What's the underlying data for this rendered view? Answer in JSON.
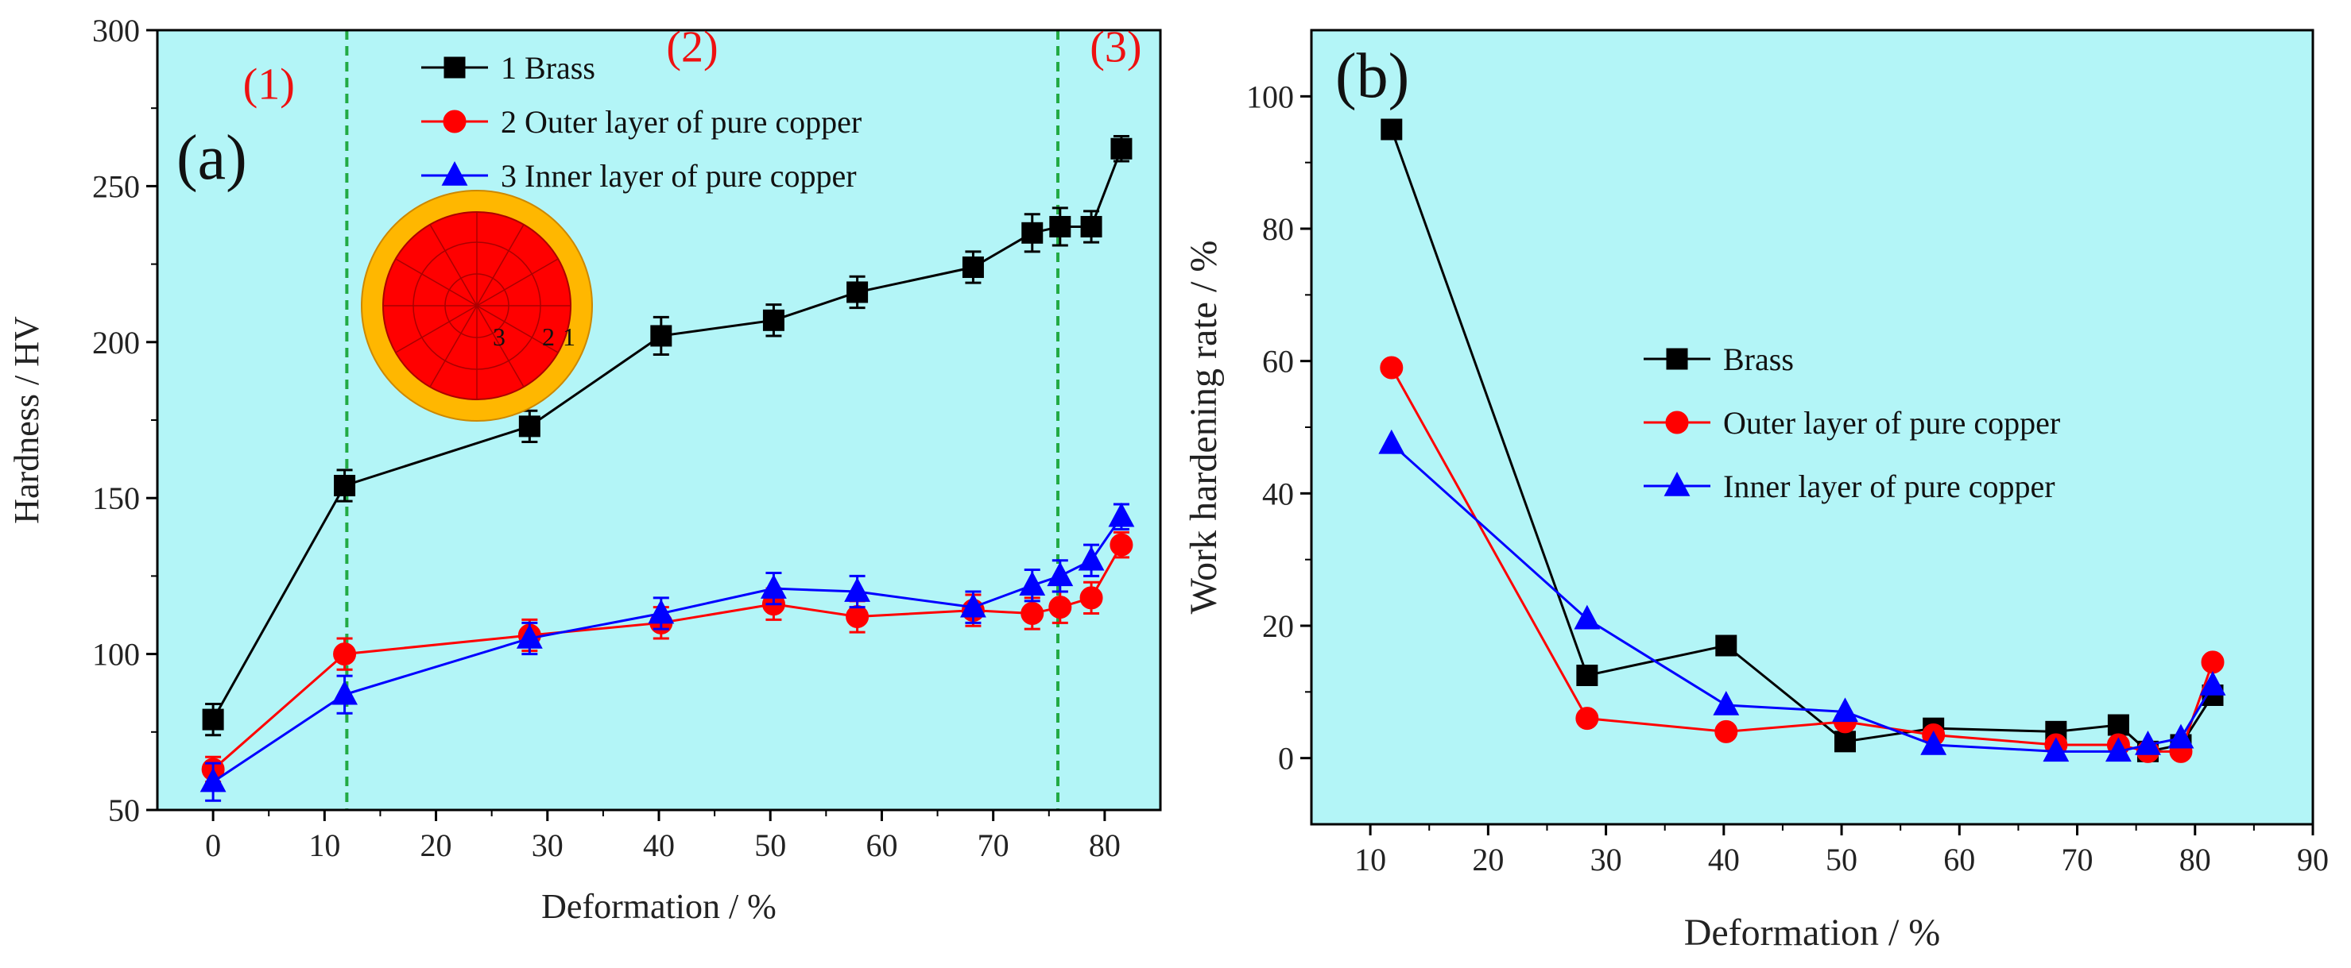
{
  "chart_data": [
    {
      "type": "line",
      "panel_label": "(a)",
      "xlabel": "Deformation / %",
      "ylabel": "Hardness / HV",
      "xlim": [
        -5,
        85
      ],
      "ylim": [
        50,
        300
      ],
      "xticks": [
        0,
        10,
        20,
        30,
        40,
        50,
        60,
        70,
        80
      ],
      "yticks": [
        50,
        100,
        150,
        200,
        250,
        300
      ],
      "background": "#b3f5f7",
      "legend_position": "top-center",
      "series": [
        {
          "name": "1 Brass",
          "color": "#000000",
          "marker": "square",
          "x": [
            0,
            11.8,
            28.4,
            40.2,
            50.3,
            57.8,
            68.2,
            73.5,
            76.0,
            78.8,
            81.5
          ],
          "y": [
            79,
            154,
            173,
            202,
            207,
            216,
            224,
            235,
            237,
            237,
            262
          ],
          "err": [
            5,
            5,
            5,
            6,
            5,
            5,
            5,
            6,
            6,
            5,
            4
          ]
        },
        {
          "name": "2 Outer layer of pure copper",
          "color": "#ff0000",
          "marker": "circle",
          "x": [
            0,
            11.8,
            28.4,
            40.2,
            50.3,
            57.8,
            68.2,
            73.5,
            76.0,
            78.8,
            81.5
          ],
          "y": [
            63,
            100,
            106,
            110,
            116,
            112,
            114,
            113,
            115,
            118,
            135
          ],
          "err": [
            4,
            5,
            5,
            5,
            5,
            5,
            5,
            5,
            5,
            5,
            4
          ]
        },
        {
          "name": "3 Inner layer of pure copper",
          "color": "#0000ff",
          "marker": "triangle",
          "x": [
            0,
            11.8,
            28.4,
            40.2,
            50.3,
            57.8,
            68.2,
            73.5,
            76.0,
            78.8,
            81.5
          ],
          "y": [
            59,
            87,
            105,
            113,
            121,
            120,
            115,
            122,
            125,
            130,
            144
          ],
          "err": [
            6,
            6,
            5,
            5,
            5,
            5,
            5,
            5,
            5,
            5,
            4
          ]
        }
      ],
      "vlines": [
        {
          "x": 12,
          "color": "#22aa44"
        },
        {
          "x": 75.8,
          "color": "#22aa44"
        }
      ],
      "region_labels": [
        {
          "text": "(1)",
          "x": 5,
          "y": 278
        },
        {
          "text": "(2)",
          "x": 43,
          "y": 290
        },
        {
          "text": "(3)",
          "x": 81,
          "y": 290
        }
      ],
      "inset": {
        "outer_color": "#ffb700",
        "inner_color": "#ff0000",
        "position_labels": [
          "3",
          "2",
          "1"
        ]
      }
    },
    {
      "type": "line",
      "panel_label": "(b)",
      "xlabel": "Deformation / %",
      "ylabel": "Work hardening rate / %",
      "xlim": [
        5,
        90
      ],
      "ylim": [
        -10,
        110
      ],
      "xticks": [
        10,
        20,
        30,
        40,
        50,
        60,
        70,
        80,
        90
      ],
      "yticks": [
        0,
        20,
        40,
        60,
        80,
        100
      ],
      "background": "#b3f5f7",
      "legend_position": "center-right",
      "series": [
        {
          "name": "Brass",
          "color": "#000000",
          "marker": "square",
          "x": [
            11.8,
            28.4,
            40.2,
            50.3,
            57.8,
            68.2,
            73.5,
            76.0,
            78.8,
            81.5
          ],
          "y": [
            95,
            12.5,
            17,
            2.5,
            4.5,
            4,
            5,
            1,
            2,
            9.5
          ]
        },
        {
          "name": "Outer layer of pure copper",
          "color": "#ff0000",
          "marker": "circle",
          "x": [
            11.8,
            28.4,
            40.2,
            50.3,
            57.8,
            68.2,
            73.5,
            76.0,
            78.8,
            81.5
          ],
          "y": [
            59,
            6,
            4,
            5.5,
            3.5,
            2,
            2,
            1,
            1,
            14.5
          ]
        },
        {
          "name": "Inner layer of pure copper",
          "color": "#0000ff",
          "marker": "triangle",
          "x": [
            11.8,
            28.4,
            40.2,
            50.3,
            57.8,
            68.2,
            73.5,
            76.0,
            78.8,
            81.5
          ],
          "y": [
            47.5,
            21,
            8,
            7,
            2,
            1,
            1,
            2,
            3,
            11
          ]
        }
      ]
    }
  ]
}
